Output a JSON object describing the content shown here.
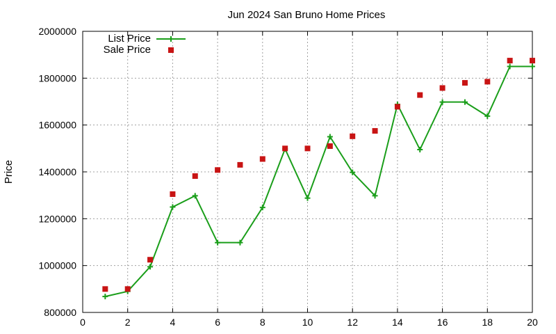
{
  "chart_data": {
    "type": "line",
    "title": "Jun 2024 San Bruno Home Prices",
    "xlabel": "",
    "ylabel": "Price",
    "xlim": [
      0,
      20
    ],
    "ylim": [
      800000,
      2000000
    ],
    "x_ticks": [
      0,
      2,
      4,
      6,
      8,
      10,
      12,
      14,
      16,
      18,
      20
    ],
    "y_ticks": [
      800000,
      1000000,
      1200000,
      1400000,
      1600000,
      1800000,
      2000000
    ],
    "grid": true,
    "legend_position": "top-left",
    "series": [
      {
        "name": "List Price",
        "style": "line-plus",
        "color": "#1a9e1a",
        "x": [
          1,
          2,
          3,
          4,
          5,
          6,
          7,
          8,
          9,
          10,
          11,
          12,
          13,
          14,
          15,
          16,
          17,
          18,
          19,
          20
        ],
        "y": [
          868000,
          890000,
          995000,
          1250000,
          1298000,
          1098000,
          1098000,
          1248000,
          1498000,
          1288000,
          1550000,
          1398000,
          1298000,
          1688000,
          1495000,
          1698000,
          1698000,
          1638000,
          1850000,
          1850000
        ]
      },
      {
        "name": "Sale Price",
        "style": "square",
        "color": "#c81414",
        "x": [
          1,
          2,
          3,
          4,
          5,
          6,
          7,
          8,
          9,
          10,
          11,
          12,
          13,
          14,
          15,
          16,
          17,
          18,
          19,
          20
        ],
        "y": [
          900000,
          900000,
          1025000,
          1305000,
          1382000,
          1408000,
          1430000,
          1455000,
          1500000,
          1500000,
          1510000,
          1552000,
          1575000,
          1678000,
          1728000,
          1758000,
          1780000,
          1785000,
          1875000,
          1875000
        ]
      }
    ]
  }
}
